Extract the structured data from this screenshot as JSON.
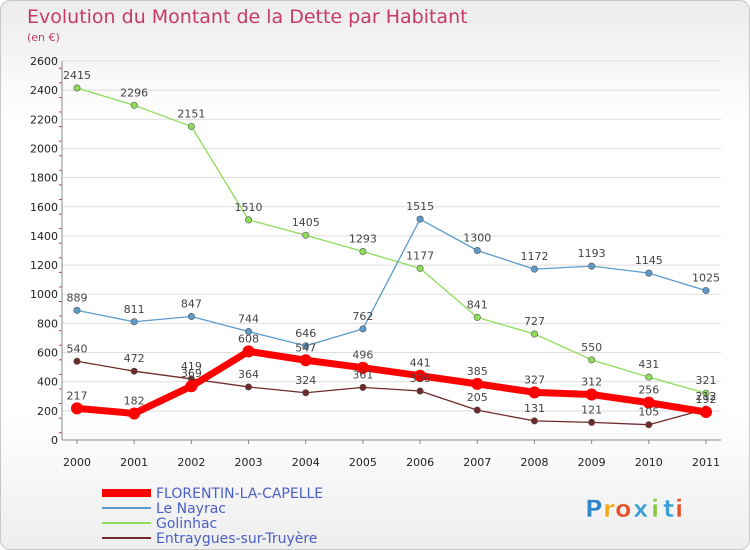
{
  "chart_data": {
    "type": "line",
    "title": "Evolution du Montant de la Dette par Habitant",
    "subtitle": "(en €)",
    "x": [
      "2000",
      "2001",
      "2002",
      "2003",
      "2004",
      "2005",
      "2006",
      "2007",
      "2008",
      "2009",
      "2010",
      "2011"
    ],
    "ylim": [
      0,
      2600
    ],
    "yticks": [
      0,
      200,
      400,
      600,
      800,
      1000,
      1200,
      1400,
      1600,
      1800,
      2000,
      2200,
      2400,
      2600
    ],
    "grid": "horizontal",
    "legend_placement": "bottom-left",
    "series": [
      {
        "name": "FLORENTIN-LA-CAPELLE",
        "color": "#ff0000",
        "values": [
          217,
          182,
          369,
          608,
          547,
          496,
          441,
          385,
          327,
          312,
          256,
          192
        ]
      },
      {
        "name": "Le Nayrac",
        "color": "#5c9ccc",
        "values": [
          889,
          811,
          847,
          744,
          646,
          762,
          1515,
          1300,
          1172,
          1193,
          1145,
          1025
        ]
      },
      {
        "name": "Golinhac",
        "color": "#8fdc5a",
        "values": [
          2415,
          2296,
          2151,
          1510,
          1405,
          1293,
          1177,
          841,
          727,
          550,
          431,
          321
        ]
      },
      {
        "name": "Entraygues-sur-Truyère",
        "color": "#6e2a2a",
        "values": [
          540,
          472,
          419,
          364,
          324,
          361,
          336,
          205,
          131,
          121,
          105,
          212
        ]
      }
    ]
  },
  "logo": {
    "text": "Proxiti",
    "letters": [
      "P",
      "r",
      "o",
      "x",
      "i",
      "t",
      "i"
    ]
  }
}
